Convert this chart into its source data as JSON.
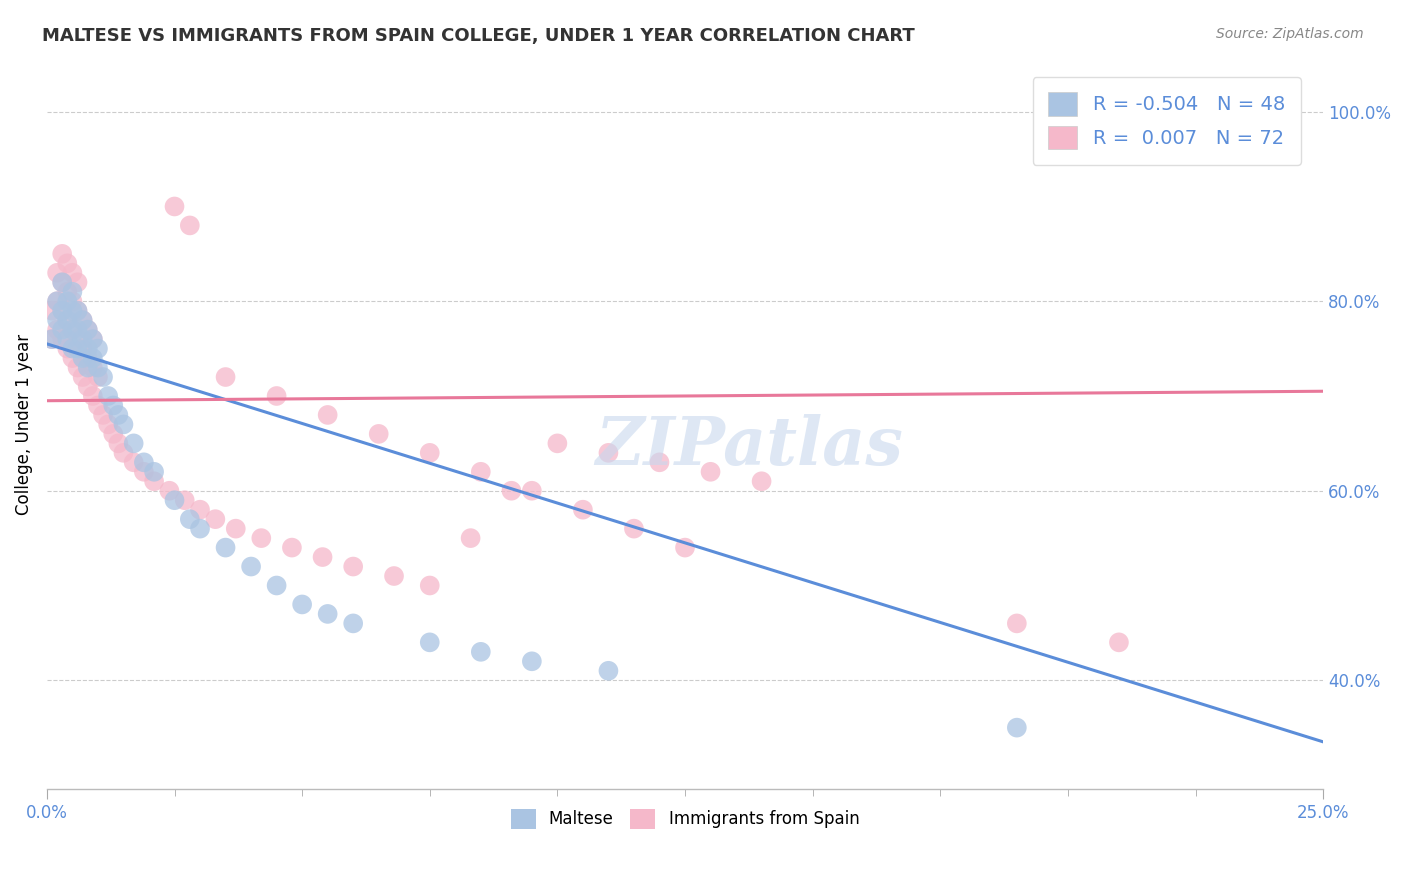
{
  "title": "MALTESE VS IMMIGRANTS FROM SPAIN COLLEGE, UNDER 1 YEAR CORRELATION CHART",
  "source_text": "Source: ZipAtlas.com",
  "ylabel": "College, Under 1 year",
  "ytick_labels": [
    "40.0%",
    "60.0%",
    "80.0%",
    "100.0%"
  ],
  "ytick_values": [
    0.4,
    0.6,
    0.8,
    1.0
  ],
  "xlim": [
    0.0,
    0.25
  ],
  "ylim": [
    0.285,
    1.055
  ],
  "legend_r_blue": "-0.504",
  "legend_n_blue": "48",
  "legend_r_pink": "0.007",
  "legend_n_pink": "72",
  "legend_label_blue": "Maltese",
  "legend_label_pink": "Immigrants from Spain",
  "blue_color": "#aac4e2",
  "pink_color": "#f5b8ca",
  "blue_line_color": "#5b8dd9",
  "pink_line_color": "#e8789a",
  "title_color": "#333333",
  "axis_label_color": "#5b8dd9",
  "grid_color": "#cccccc",
  "blue_scatter_x": [
    0.001,
    0.002,
    0.002,
    0.003,
    0.003,
    0.003,
    0.004,
    0.004,
    0.004,
    0.005,
    0.005,
    0.005,
    0.005,
    0.006,
    0.006,
    0.006,
    0.007,
    0.007,
    0.007,
    0.008,
    0.008,
    0.008,
    0.009,
    0.009,
    0.01,
    0.01,
    0.011,
    0.012,
    0.013,
    0.014,
    0.015,
    0.017,
    0.019,
    0.021,
    0.025,
    0.028,
    0.03,
    0.035,
    0.04,
    0.045,
    0.05,
    0.055,
    0.06,
    0.075,
    0.085,
    0.095,
    0.11,
    0.19
  ],
  "blue_scatter_y": [
    0.76,
    0.78,
    0.8,
    0.77,
    0.79,
    0.82,
    0.76,
    0.78,
    0.8,
    0.75,
    0.77,
    0.79,
    0.81,
    0.75,
    0.77,
    0.79,
    0.74,
    0.76,
    0.78,
    0.73,
    0.75,
    0.77,
    0.74,
    0.76,
    0.73,
    0.75,
    0.72,
    0.7,
    0.69,
    0.68,
    0.67,
    0.65,
    0.63,
    0.62,
    0.59,
    0.57,
    0.56,
    0.54,
    0.52,
    0.5,
    0.48,
    0.47,
    0.46,
    0.44,
    0.43,
    0.42,
    0.41,
    0.35
  ],
  "pink_scatter_x": [
    0.001,
    0.001,
    0.002,
    0.002,
    0.002,
    0.003,
    0.003,
    0.003,
    0.003,
    0.004,
    0.004,
    0.004,
    0.004,
    0.005,
    0.005,
    0.005,
    0.005,
    0.006,
    0.006,
    0.006,
    0.006,
    0.007,
    0.007,
    0.007,
    0.008,
    0.008,
    0.008,
    0.009,
    0.009,
    0.009,
    0.01,
    0.01,
    0.011,
    0.012,
    0.013,
    0.014,
    0.015,
    0.017,
    0.019,
    0.021,
    0.024,
    0.027,
    0.03,
    0.033,
    0.037,
    0.042,
    0.048,
    0.054,
    0.06,
    0.068,
    0.075,
    0.083,
    0.091,
    0.1,
    0.11,
    0.12,
    0.13,
    0.14,
    0.025,
    0.028,
    0.035,
    0.045,
    0.055,
    0.065,
    0.075,
    0.085,
    0.095,
    0.105,
    0.115,
    0.125,
    0.19,
    0.21
  ],
  "pink_scatter_y": [
    0.76,
    0.79,
    0.77,
    0.8,
    0.83,
    0.76,
    0.79,
    0.82,
    0.85,
    0.75,
    0.78,
    0.81,
    0.84,
    0.74,
    0.77,
    0.8,
    0.83,
    0.73,
    0.76,
    0.79,
    0.82,
    0.72,
    0.75,
    0.78,
    0.71,
    0.74,
    0.77,
    0.7,
    0.73,
    0.76,
    0.69,
    0.72,
    0.68,
    0.67,
    0.66,
    0.65,
    0.64,
    0.63,
    0.62,
    0.61,
    0.6,
    0.59,
    0.58,
    0.57,
    0.56,
    0.55,
    0.54,
    0.53,
    0.52,
    0.51,
    0.5,
    0.55,
    0.6,
    0.65,
    0.64,
    0.63,
    0.62,
    0.61,
    0.9,
    0.88,
    0.72,
    0.7,
    0.68,
    0.66,
    0.64,
    0.62,
    0.6,
    0.58,
    0.56,
    0.54,
    0.46,
    0.44
  ],
  "blue_trend_x": [
    0.0,
    0.25
  ],
  "blue_trend_y": [
    0.755,
    0.335
  ],
  "pink_trend_x": [
    0.0,
    0.25
  ],
  "pink_trend_y": [
    0.695,
    0.705
  ]
}
